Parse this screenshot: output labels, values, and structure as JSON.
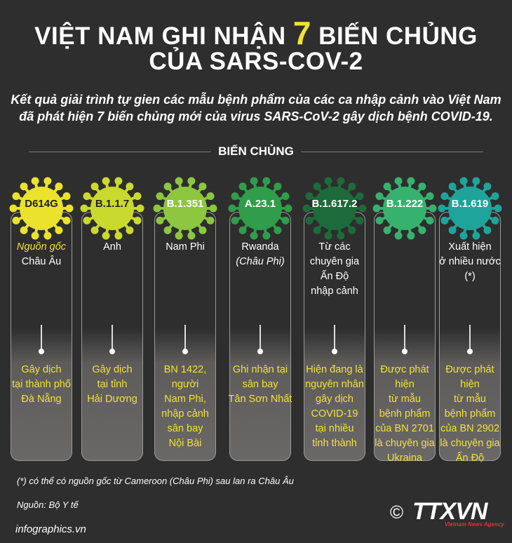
{
  "title": {
    "line1_before": "VIỆT NAM GHI NHẬN ",
    "line1_number": "7",
    "line1_after": " BIẾN CHỦNG",
    "line2": "CỦA SARS-COV-2"
  },
  "subtitle": {
    "line1": "Kết quả giải trình tự gien các mẫu bệnh phẩm của các ca nhập cảnh vào Việt Nam",
    "line2": "đã phát hiện 7 biến chủng mới của virus SARS-CoV-2 gây dịch bệnh COVID-19."
  },
  "section_title": "BIẾN CHỦNG",
  "variants": [
    {
      "name": "D614G",
      "color": "#ebe22c",
      "label_color": "#222222",
      "origin_prefix": "Nguồn gốc",
      "origin": [
        "Châu Âu"
      ],
      "detail": [
        "Gây dịch",
        "tại thành phố",
        "Đà Nẵng"
      ]
    },
    {
      "name": "B.1.1.7",
      "color": "#cad92d",
      "label_color": "#222222",
      "origin": [
        "Anh"
      ],
      "detail": [
        "Gây dịch",
        "tại tỉnh",
        "Hải Dương"
      ]
    },
    {
      "name": "B.1.351",
      "color": "#8dc63f",
      "label_color": "#ffffff",
      "origin": [
        "Nam Phi"
      ],
      "detail": [
        "BN 1422,",
        "người",
        "Nam Phi,",
        "nhập cảnh",
        "sân bay",
        "Nội Bài"
      ]
    },
    {
      "name": "A.23.1",
      "color": "#2f9d4a",
      "label_color": "#ffffff",
      "origin": [
        "Rwanda"
      ],
      "origin_note": "(Châu Phi)",
      "detail": [
        "Ghi nhận tại",
        "sân bay",
        "Tân Sơn Nhất"
      ]
    },
    {
      "name": "B.1.617.2",
      "color": "#1d6b3a",
      "label_color": "#ffffff",
      "origin": [
        "Từ các",
        "chuyên gia",
        "Ấn Độ",
        "nhập cảnh"
      ],
      "detail": [
        "Hiện đang là",
        "nguyên nhân",
        "gây dịch",
        "COVID-19",
        "tại nhiều",
        "tỉnh thành"
      ]
    },
    {
      "name": "B.1.222",
      "color": "#36b26e",
      "label_color": "#ffffff",
      "origin": [],
      "detail": [
        "Được phát hiện",
        "từ mẫu",
        "bệnh phẩm",
        "của BN 2701",
        "là chuyên gia",
        "Ukraina"
      ]
    },
    {
      "name": "B.1.619",
      "color": "#1fa49b",
      "label_color": "#ffffff",
      "origin": [
        "Xuất hiện",
        "ở nhiều nước",
        "(*)"
      ],
      "detail": [
        "Được phát hiện",
        "từ mẫu",
        "bệnh phẩm",
        "của BN 2902",
        "là chuyên gia",
        "Ấn Độ"
      ]
    }
  ],
  "footnote": "(*) có thể có nguồn gốc từ Cameroon (Châu Phi) sau lan ra Châu Âu",
  "source": "Nguồn: Bộ Y tế",
  "website": "infographics.vn",
  "logo": {
    "copyright": "©",
    "name": "TTXVN",
    "tagline": "Vietnam News Agency"
  }
}
